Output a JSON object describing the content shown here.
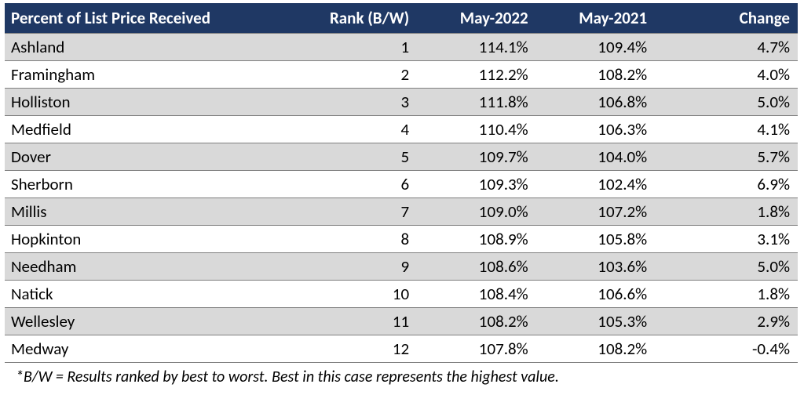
{
  "table": {
    "type": "table",
    "header_bg": "#1f3864",
    "header_fg": "#ffffff",
    "row_alt_bg": "#d9d9d9",
    "row_bg": "#ffffff",
    "border_color": "#7f7f7f",
    "header_fontsize": 21,
    "cell_fontsize": 21,
    "columns": [
      {
        "label": "Percent of List Price Received",
        "align": "left"
      },
      {
        "label": "Rank (B/W)",
        "align": "right"
      },
      {
        "label": "May-2022",
        "align": "right"
      },
      {
        "label": "May-2021",
        "align": "right"
      },
      {
        "label": "Change",
        "align": "right"
      }
    ],
    "rows": [
      {
        "name": "Ashland",
        "rank": "1",
        "may2022": "114.1%",
        "may2021": "109.4%",
        "change": "4.7%"
      },
      {
        "name": "Framingham",
        "rank": "2",
        "may2022": "112.2%",
        "may2021": "108.2%",
        "change": "4.0%"
      },
      {
        "name": "Holliston",
        "rank": "3",
        "may2022": "111.8%",
        "may2021": "106.8%",
        "change": "5.0%"
      },
      {
        "name": "Medfield",
        "rank": "4",
        "may2022": "110.4%",
        "may2021": "106.3%",
        "change": "4.1%"
      },
      {
        "name": "Dover",
        "rank": "5",
        "may2022": "109.7%",
        "may2021": "104.0%",
        "change": "5.7%"
      },
      {
        "name": "Sherborn",
        "rank": "6",
        "may2022": "109.3%",
        "may2021": "102.4%",
        "change": "6.9%"
      },
      {
        "name": "Millis",
        "rank": "7",
        "may2022": "109.0%",
        "may2021": "107.2%",
        "change": "1.8%"
      },
      {
        "name": "Hopkinton",
        "rank": "8",
        "may2022": "108.9%",
        "may2021": "105.8%",
        "change": "3.1%"
      },
      {
        "name": "Needham",
        "rank": "9",
        "may2022": "108.6%",
        "may2021": "103.6%",
        "change": "5.0%"
      },
      {
        "name": "Natick",
        "rank": "10",
        "may2022": "108.4%",
        "may2021": "106.6%",
        "change": "1.8%"
      },
      {
        "name": "Wellesley",
        "rank": "11",
        "may2022": "108.2%",
        "may2021": "105.3%",
        "change": "2.9%"
      },
      {
        "name": "Medway",
        "rank": "12",
        "may2022": "107.8%",
        "may2021": "108.2%",
        "change": "-0.4%"
      }
    ],
    "footnote": "*B/W = Results ranked by best to worst.  Best in this case represents the highest value."
  }
}
